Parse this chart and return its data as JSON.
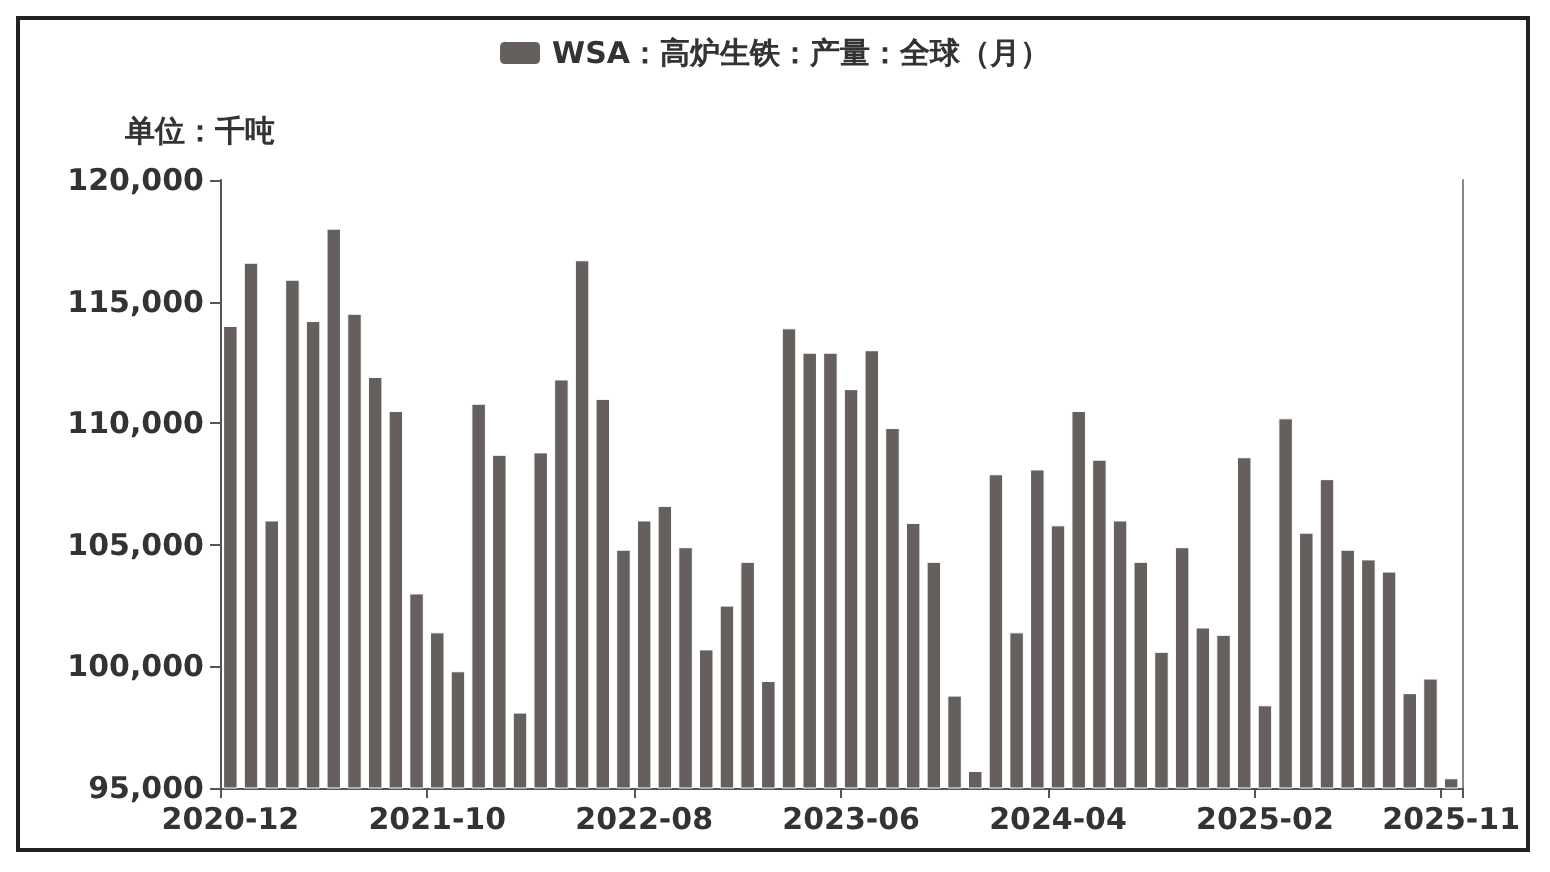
{
  "chart_data": {
    "type": "bar",
    "ylabel": "单位：千吨",
    "legend": "top",
    "grid": false,
    "categories": [
      "2020-12",
      null,
      null,
      null,
      null,
      null,
      null,
      null,
      null,
      null,
      "2021-10",
      null,
      null,
      null,
      null,
      null,
      null,
      null,
      null,
      null,
      "2022-08",
      null,
      null,
      null,
      null,
      null,
      null,
      null,
      null,
      null,
      "2023-06",
      null,
      null,
      null,
      null,
      null,
      null,
      null,
      null,
      null,
      "2024-04",
      null,
      null,
      null,
      null,
      null,
      null,
      null,
      null,
      null,
      "2025-02",
      null,
      null,
      null,
      null,
      null,
      null,
      null,
      null,
      "2025-11"
    ],
    "series": [
      {
        "name": "WSA：高炉生铁：产量：全球（月）",
        "color": "#655f5e",
        "values": [
          114000,
          116600,
          106000,
          115900,
          114200,
          118000,
          114500,
          111900,
          110500,
          103000,
          101400,
          99800,
          110800,
          108700,
          98100,
          108800,
          111800,
          116700,
          111000,
          104800,
          106000,
          106600,
          104900,
          100700,
          102500,
          104300,
          99400,
          113900,
          112900,
          112900,
          111400,
          113000,
          109800,
          105900,
          104300,
          98800,
          95700,
          107900,
          101400,
          108100,
          105800,
          110500,
          108500,
          106000,
          104300,
          100600,
          104900,
          101600,
          101300,
          108600,
          98400,
          110200,
          105500,
          107700,
          104800,
          104400,
          103900,
          98900,
          99500,
          95400
        ]
      }
    ],
    "ylim": [
      95000,
      120000
    ],
    "yticks": [
      {
        "value": 95000,
        "label": "95,000"
      },
      {
        "value": 100000,
        "label": "100,000"
      },
      {
        "value": 105000,
        "label": "105,000"
      },
      {
        "value": 110000,
        "label": "110,000"
      },
      {
        "value": 115000,
        "label": "115,000"
      },
      {
        "value": 120000,
        "label": "120,000"
      }
    ]
  }
}
